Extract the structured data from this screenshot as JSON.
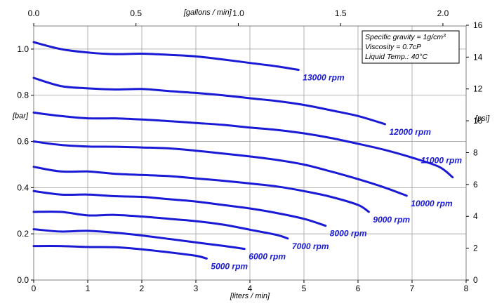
{
  "chart_data": {
    "type": "line",
    "title": "",
    "x_bottom": {
      "label": "[liters / min]",
      "range": [
        0,
        8
      ],
      "ticks": [
        "0",
        "1",
        "2",
        "3",
        "4",
        "5",
        "6",
        "7",
        "8"
      ]
    },
    "x_top": {
      "label": "[gallons / min]",
      "range": [
        0,
        2.1134
      ],
      "ticks": [
        "0.0",
        "0.5",
        "1.0",
        "1.5",
        "2.0"
      ]
    },
    "y_left": {
      "label": "[bar]",
      "range": [
        0,
        1.1
      ],
      "ticks": [
        "0.0",
        "0.2",
        "0.4",
        "0.6",
        "0.8",
        "1.0"
      ]
    },
    "y_right": {
      "label": "[psi]",
      "range": [
        0,
        15.954
      ],
      "ticks": [
        "0",
        "2",
        "4",
        "6",
        "8",
        "10",
        "12",
        "14",
        "16"
      ]
    },
    "grid": true,
    "line_color": "#1a1ad6",
    "annotation": {
      "line1_prefix": "Specific gravity = 1g/cm",
      "line1_sup": "3",
      "line2": "Viscosity = 0.7cP",
      "line3": "Liquid Temp.: 40°C"
    },
    "series": [
      {
        "name": "5000 rpm",
        "x": [
          0,
          0.5,
          1,
          1.5,
          2,
          2.5,
          3,
          3.2
        ],
        "y": [
          0.147,
          0.147,
          0.143,
          0.142,
          0.133,
          0.12,
          0.105,
          0.093
        ]
      },
      {
        "name": "6000 rpm",
        "x": [
          0,
          0.5,
          1,
          1.5,
          2,
          2.5,
          3,
          3.5,
          3.9
        ],
        "y": [
          0.22,
          0.21,
          0.213,
          0.205,
          0.193,
          0.178,
          0.163,
          0.148,
          0.135
        ]
      },
      {
        "name": "7000 rpm",
        "x": [
          0,
          0.5,
          1,
          1.5,
          2,
          2.5,
          3,
          3.5,
          4,
          4.5,
          4.7
        ],
        "y": [
          0.295,
          0.295,
          0.28,
          0.282,
          0.275,
          0.265,
          0.255,
          0.24,
          0.218,
          0.195,
          0.18
        ]
      },
      {
        "name": "8000 rpm",
        "x": [
          0,
          0.5,
          1,
          1.5,
          2,
          2.5,
          3,
          3.5,
          4,
          4.5,
          5,
          5.4
        ],
        "y": [
          0.385,
          0.37,
          0.37,
          0.363,
          0.36,
          0.35,
          0.34,
          0.325,
          0.31,
          0.29,
          0.265,
          0.235
        ]
      },
      {
        "name": "9000 rpm",
        "x": [
          0,
          0.5,
          1,
          1.5,
          2,
          2.5,
          3,
          3.5,
          4,
          4.5,
          5,
          5.5,
          6,
          6.2
        ],
        "y": [
          0.49,
          0.47,
          0.47,
          0.46,
          0.455,
          0.45,
          0.44,
          0.43,
          0.418,
          0.405,
          0.385,
          0.36,
          0.325,
          0.295
        ]
      },
      {
        "name": "10000 rpm",
        "x": [
          0,
          0.5,
          1,
          1.5,
          2,
          2.5,
          3,
          3.5,
          4,
          4.5,
          5,
          5.5,
          6,
          6.5,
          6.9
        ],
        "y": [
          0.6,
          0.585,
          0.578,
          0.577,
          0.574,
          0.57,
          0.56,
          0.548,
          0.535,
          0.52,
          0.5,
          0.47,
          0.437,
          0.4,
          0.365
        ]
      },
      {
        "name": "11000 rpm",
        "x": [
          0,
          0.5,
          1,
          1.5,
          2,
          2.5,
          3,
          3.5,
          4,
          4.5,
          5,
          5.5,
          6,
          6.5,
          7,
          7.5,
          7.75
        ],
        "y": [
          0.725,
          0.71,
          0.7,
          0.7,
          0.695,
          0.688,
          0.68,
          0.672,
          0.66,
          0.65,
          0.635,
          0.615,
          0.59,
          0.563,
          0.53,
          0.49,
          0.445
        ]
      },
      {
        "name": "12000 rpm",
        "x": [
          0,
          0.5,
          1,
          1.5,
          2,
          2.5,
          3,
          3.5,
          4,
          4.5,
          5,
          5.5,
          6,
          6.5
        ],
        "y": [
          0.875,
          0.84,
          0.83,
          0.825,
          0.827,
          0.818,
          0.81,
          0.8,
          0.787,
          0.775,
          0.758,
          0.735,
          0.71,
          0.675
        ]
      },
      {
        "name": "13000 rpm",
        "x": [
          0,
          0.5,
          1,
          1.5,
          2,
          2.5,
          3,
          3.5,
          4,
          4.5,
          4.9
        ],
        "y": [
          1.03,
          1.0,
          0.985,
          0.978,
          0.98,
          0.975,
          0.968,
          0.955,
          0.94,
          0.925,
          0.91
        ]
      }
    ]
  }
}
